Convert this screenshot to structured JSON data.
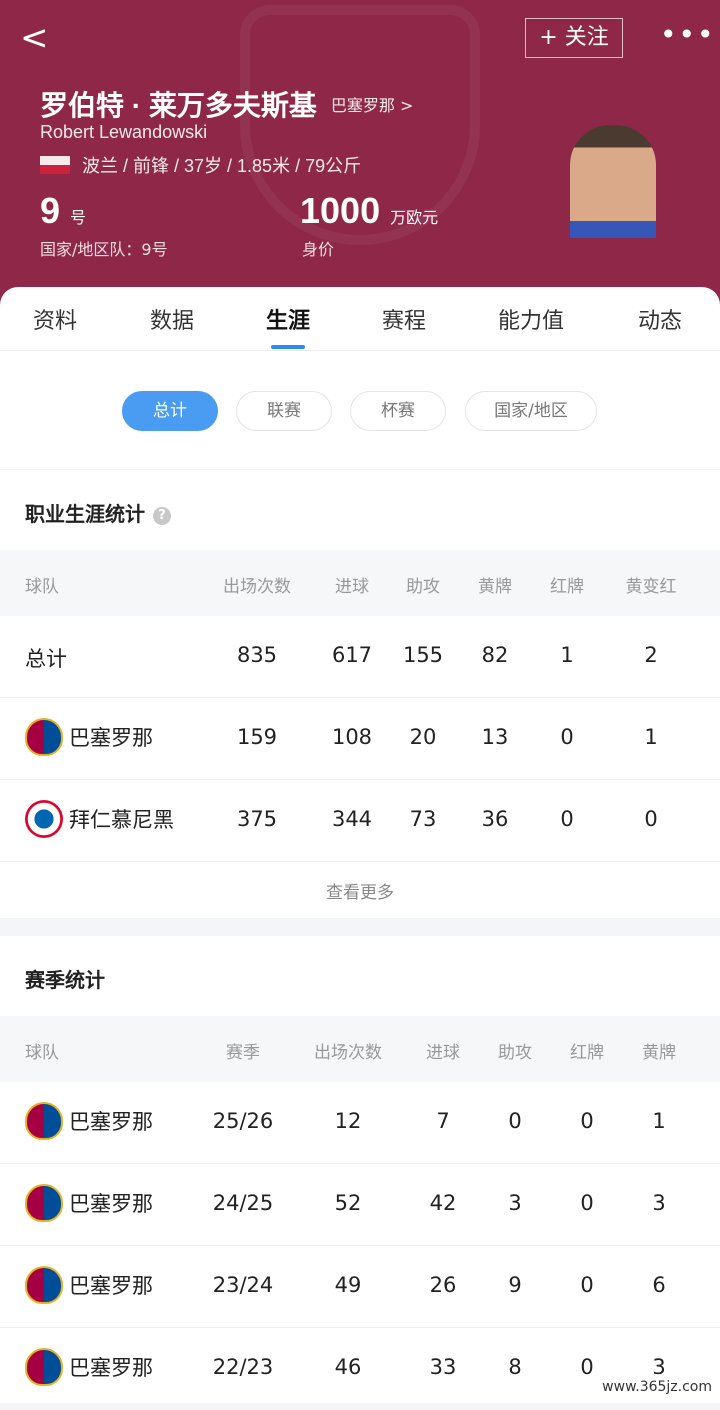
{
  "header": {
    "back": "<",
    "follow": "+ 关注",
    "more": "•••",
    "name": "罗伯特 · 莱万多夫斯基",
    "club_link": "巴塞罗那 >",
    "name_en": "Robert Lewandowski",
    "meta": "波兰 / 前锋 / 37岁 / 1.85米 / 79公斤",
    "number": "9",
    "number_unit": "号",
    "national": "国家/地区队：9号",
    "value": "1000",
    "value_unit": "万欧元",
    "value_label": "身价"
  },
  "tabs": [
    "资料",
    "数据",
    "生涯",
    "赛程",
    "能力值",
    "动态"
  ],
  "active_tab": "生涯",
  "filters": [
    "总计",
    "联赛",
    "杯赛",
    "国家/地区"
  ],
  "career": {
    "title": "职业生涯统计",
    "help": "?",
    "headers": [
      "球队",
      "出场次数",
      "进球",
      "助攻",
      "黄牌",
      "红牌",
      "黄变红"
    ],
    "rows": [
      {
        "team": "总计",
        "badge": "",
        "vals": [
          "835",
          "617",
          "155",
          "82",
          "1",
          "2"
        ]
      },
      {
        "team": "巴塞罗那",
        "badge": "barcelona-crest",
        "vals": [
          "159",
          "108",
          "20",
          "13",
          "0",
          "1"
        ]
      },
      {
        "team": "拜仁慕尼黑",
        "badge": "bayern-crest",
        "vals": [
          "375",
          "344",
          "73",
          "36",
          "0",
          "0"
        ]
      }
    ],
    "see_more": "查看更多"
  },
  "season": {
    "title": "赛季统计",
    "headers": [
      "球队",
      "赛季",
      "出场次数",
      "进球",
      "助攻",
      "红牌",
      "黄牌"
    ],
    "rows": [
      {
        "team": "巴塞罗那",
        "vals": [
          "25/26",
          "12",
          "7",
          "0",
          "0",
          "1"
        ]
      },
      {
        "team": "巴塞罗那",
        "vals": [
          "24/25",
          "52",
          "42",
          "3",
          "0",
          "3"
        ]
      },
      {
        "team": "巴塞罗那",
        "vals": [
          "23/24",
          "49",
          "26",
          "9",
          "0",
          "6"
        ]
      },
      {
        "team": "巴塞罗那",
        "vals": [
          "22/23",
          "46",
          "33",
          "8",
          "0",
          "3"
        ]
      }
    ]
  },
  "watermark": "www.365jz.com"
}
